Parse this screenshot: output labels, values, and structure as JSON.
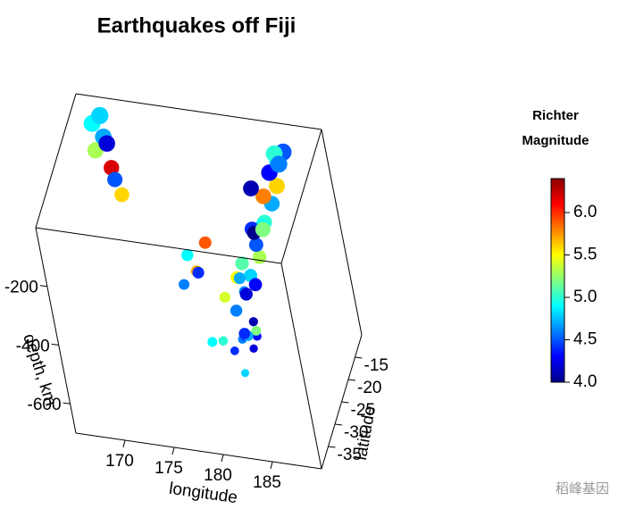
{
  "chart_data": {
    "type": "scatter3d",
    "title": "Earthquakes off Fiji",
    "xlabel": "longitude",
    "ylabel": "latitude",
    "zlabel": "depth, km",
    "xlim": [
      165,
      190
    ],
    "ylim": [
      -40,
      -10
    ],
    "zlim": [
      -700,
      0
    ],
    "xticks": [
      170,
      175,
      180,
      185
    ],
    "yticks": [
      -15,
      -20,
      -25,
      -30,
      -35
    ],
    "zticks": [
      -200,
      -400,
      -600
    ],
    "colorbar": {
      "title": [
        "Richter",
        "Magnitude"
      ],
      "clim": [
        4,
        6.4
      ],
      "ticks": [
        {
          "value": 4,
          "label": "4.0"
        },
        {
          "value": 4.5,
          "label": "4.5"
        },
        {
          "value": 5,
          "label": "5.0"
        },
        {
          "value": 5.5,
          "label": "5.5"
        },
        {
          "value": 6,
          "label": "6.0"
        }
      ],
      "colormap": [
        "#00008b",
        "#0000ff",
        "#0080ff",
        "#00ffff",
        "#80ff80",
        "#ffff00",
        "#ff8000",
        "#ff0000",
        "#8b0000"
      ]
    },
    "series": [
      {
        "longitude": [
          179.5,
          180.2,
          181.0,
          178.8,
          180.6,
          181.4,
          179.9,
          182.0,
          180.9,
          181.8,
          178.2,
          179.1,
          180.4,
          182.5,
          183.1,
          184.0,
          183.6,
          184.6,
          182.8,
          185.2,
          185.6,
          184.9,
          183.9,
          182.2,
          181.6,
          183.3,
          184.3,
          185.8,
          186.2,
          181.1,
          180.7,
          182.9,
          183.7,
          184.8,
          176.0,
          175.2,
          174.6,
          177.0,
          176.5,
          167.0,
          167.8,
          168.5,
          166.6,
          168.9,
          169.6,
          167.4,
          168.2,
          185.1,
          186.0,
          183.0
        ],
        "latitude": [
          -23.5,
          -22.0,
          -21.2,
          -24.8,
          -25.5,
          -20.3,
          -19.6,
          -22.8,
          -18.5,
          -26.0,
          -27.2,
          -21.5,
          -17.8,
          -30.5,
          -25.2,
          -23.4,
          -22.1,
          -20.7,
          -27.5,
          -18.3,
          -16.2,
          -15.4,
          -19.2,
          -24.1,
          -28.3,
          -21.3,
          -17.6,
          -14.5,
          -13.0,
          -23.0,
          -20.0,
          -19.0,
          -26.4,
          -22.9,
          -18.6,
          -17.9,
          -19.4,
          -16.5,
          -20.1,
          -14.8,
          -13.5,
          -15.6,
          -12.2,
          -16.8,
          -18.0,
          -11.5,
          -14.2,
          -12.4,
          -15.1,
          -16.9
        ],
        "depth": [
          -600,
          -580,
          -620,
          -550,
          -640,
          -590,
          -610,
          -530,
          -570,
          -500,
          -520,
          -450,
          -480,
          -420,
          -300,
          -260,
          -240,
          -180,
          -330,
          -150,
          -120,
          -90,
          -220,
          -280,
          -380,
          -200,
          -140,
          -60,
          -50,
          -350,
          -400,
          -250,
          -310,
          -170,
          -420,
          -380,
          -460,
          -350,
          -400,
          -110,
          -80,
          -150,
          -60,
          -170,
          -200,
          -40,
          -90,
          -70,
          -60,
          -130
        ],
        "magnitude": [
          4.4,
          4.6,
          4.2,
          5.0,
          4.8,
          4.3,
          4.5,
          5.2,
          4.1,
          4.7,
          4.9,
          5.4,
          4.6,
          4.4,
          4.8,
          5.3,
          4.5,
          5.0,
          4.2,
          4.7,
          5.6,
          4.3,
          4.9,
          5.1,
          4.6,
          4.4,
          5.8,
          4.8,
          4.5,
          5.5,
          4.7,
          4.0,
          4.3,
          5.2,
          5.7,
          4.9,
          4.6,
          5.9,
          4.4,
          5.3,
          4.7,
          6.2,
          4.9,
          4.5,
          5.6,
          4.8,
          4.2,
          5.0,
          4.6,
          4.1
        ]
      }
    ],
    "watermark": "稻峰基因"
  }
}
